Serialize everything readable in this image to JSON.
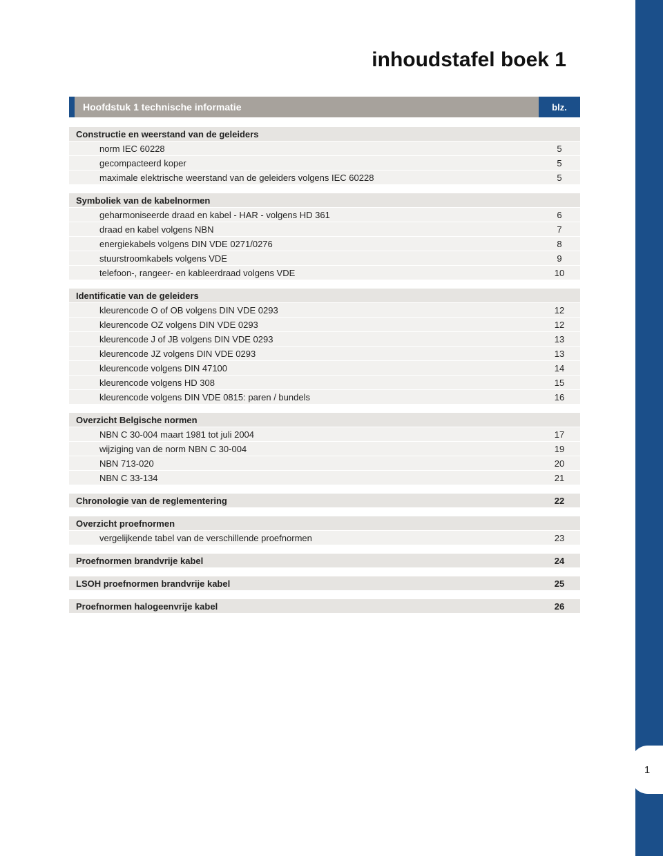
{
  "title": "inhoudstafel boek 1",
  "chapter_bar": {
    "title": "Hoofdstuk 1  technische informatie",
    "page_label": "blz."
  },
  "colors": {
    "brand_blue": "#1b4f8a",
    "bar_gray": "#a7a29c",
    "row_bg": "#f2f1ef",
    "header_bg": "#e6e4e1",
    "text": "#222222"
  },
  "page_number": "1",
  "rows": [
    {
      "type": "header",
      "label": "Constructie en weerstand van de geleiders",
      "page": ""
    },
    {
      "type": "sub",
      "label": "norm IEC 60228",
      "page": "5"
    },
    {
      "type": "sub",
      "label": "gecompacteerd koper",
      "page": "5"
    },
    {
      "type": "sub",
      "label": "maximale elektrische weerstand van de geleiders volgens IEC 60228",
      "page": "5"
    },
    {
      "type": "blank"
    },
    {
      "type": "header",
      "label": "Symboliek van de kabelnormen",
      "page": ""
    },
    {
      "type": "sub",
      "label": "geharmoniseerde draad en kabel - HAR - volgens HD 361",
      "page": "6"
    },
    {
      "type": "sub",
      "label": "draad en kabel volgens NBN",
      "page": "7"
    },
    {
      "type": "sub",
      "label": "energiekabels volgens DIN VDE 0271/0276",
      "page": "8"
    },
    {
      "type": "sub",
      "label": "stuurstroomkabels volgens VDE",
      "page": "9"
    },
    {
      "type": "sub",
      "label": "telefoon-, rangeer- en kableerdraad volgens VDE",
      "page": "10"
    },
    {
      "type": "blank"
    },
    {
      "type": "header",
      "label": "Identificatie van de geleiders",
      "page": ""
    },
    {
      "type": "sub",
      "label": "kleurencode O of OB volgens DIN VDE 0293",
      "page": "12"
    },
    {
      "type": "sub",
      "label": "kleurencode OZ volgens DIN VDE 0293",
      "page": "12"
    },
    {
      "type": "sub",
      "label": "kleurencode J of JB volgens DIN VDE 0293",
      "page": "13"
    },
    {
      "type": "sub",
      "label": "kleurencode JZ volgens DIN VDE 0293",
      "page": "13"
    },
    {
      "type": "sub",
      "label": "kleurencode volgens DIN 47100",
      "page": "14"
    },
    {
      "type": "sub",
      "label": "kleurencode volgens HD 308",
      "page": "15"
    },
    {
      "type": "sub",
      "label": "kleurencode volgens DIN VDE 0815: paren / bundels",
      "page": "16"
    },
    {
      "type": "blank"
    },
    {
      "type": "header",
      "label": "Overzicht Belgische normen",
      "page": ""
    },
    {
      "type": "sub",
      "label": "NBN C 30-004 maart 1981 tot juli 2004",
      "page": "17"
    },
    {
      "type": "sub",
      "label": "wijziging van de norm NBN C 30-004",
      "page": "19"
    },
    {
      "type": "sub",
      "label": "NBN 713-020",
      "page": "20"
    },
    {
      "type": "sub",
      "label": "NBN C 33-134",
      "page": "21"
    },
    {
      "type": "blank"
    },
    {
      "type": "header",
      "label": "Chronologie van de reglementering",
      "page": "22"
    },
    {
      "type": "blank"
    },
    {
      "type": "header",
      "label": "Overzicht proefnormen",
      "page": ""
    },
    {
      "type": "sub",
      "label": "vergelijkende tabel van de verschillende proefnormen",
      "page": "23"
    },
    {
      "type": "blank"
    },
    {
      "type": "header",
      "label": "Proefnormen brandvrije kabel",
      "page": "24"
    },
    {
      "type": "blank"
    },
    {
      "type": "header",
      "label": "LSOH proefnormen brandvrije kabel",
      "page": "25"
    },
    {
      "type": "blank"
    },
    {
      "type": "header",
      "label": "Proefnormen halogeenvrije kabel",
      "page": "26"
    }
  ]
}
